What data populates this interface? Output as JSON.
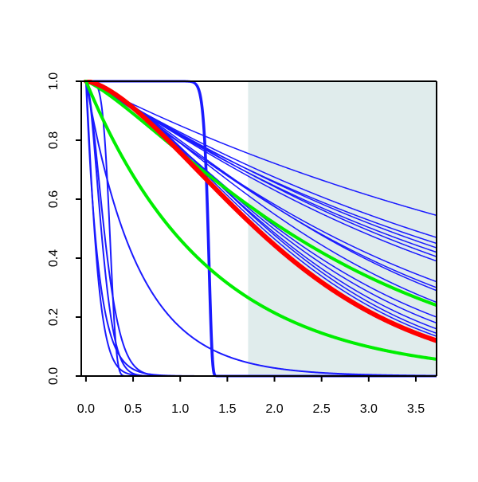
{
  "chart_data": {
    "type": "line",
    "title": "",
    "xlabel": "",
    "ylabel": "",
    "xlim": [
      -0.05,
      3.72
    ],
    "ylim": [
      0,
      1
    ],
    "x_ticks": [
      0.0,
      0.5,
      1.0,
      1.5,
      2.0,
      2.5,
      3.0,
      3.5
    ],
    "x_tick_labels": [
      "0.0",
      "0.5",
      "1.0",
      "1.5",
      "2.0",
      "2.5",
      "3.0",
      "3.5"
    ],
    "y_ticks": [
      0.0,
      0.2,
      0.4,
      0.6,
      0.8,
      1.0
    ],
    "y_tick_labels": [
      "0.0",
      "0.2",
      "0.4",
      "0.6",
      "0.8",
      "1.0"
    ],
    "shaded_region": {
      "x_from": 1.72,
      "x_to": 3.72,
      "color": "#e0ecec"
    },
    "grid": false,
    "legend": "none",
    "colors": {
      "blue": "#1a1aff",
      "red": "#ff0000",
      "green": "#00ee00",
      "axis": "#000000"
    },
    "series": [
      {
        "color": "blue",
        "kind": "weibull",
        "lambda": 1.31,
        "k": 40,
        "width": 3,
        "end_y": 0.0
      },
      {
        "color": "blue",
        "kind": "weibull",
        "lambda": 1.3,
        "k": 40,
        "width": 2,
        "end_y": 0.0
      },
      {
        "color": "blue",
        "kind": "weibull",
        "lambda": 0.27,
        "k": 5,
        "width": 2,
        "end_y": 0.0
      },
      {
        "color": "blue",
        "kind": "weibull",
        "lambda": 0.12,
        "k": 1.2,
        "width": 2,
        "end_y": 0.0
      },
      {
        "color": "blue",
        "kind": "weibull",
        "lambda": 0.2,
        "k": 1.7,
        "width": 2,
        "end_y": 0.0
      },
      {
        "color": "blue",
        "kind": "weibull",
        "lambda": 0.24,
        "k": 1.6,
        "width": 2,
        "end_y": 0.0
      },
      {
        "color": "blue",
        "kind": "exp",
        "rate": 1.8,
        "width": 2,
        "end_y": 0.001
      },
      {
        "color": "blue",
        "kind": "exp",
        "rate": 7.5,
        "width": 2,
        "end_y": 0.0
      },
      {
        "color": "blue",
        "kind": "power",
        "end_y": 0.545,
        "p": 1.0,
        "width": 1.5
      },
      {
        "color": "blue",
        "kind": "power",
        "end_y": 0.47,
        "p": 1.05,
        "width": 1.5
      },
      {
        "color": "blue",
        "kind": "power",
        "end_y": 0.45,
        "p": 1.05,
        "width": 1.5
      },
      {
        "color": "blue",
        "kind": "power",
        "end_y": 0.435,
        "p": 1.1,
        "width": 1.5
      },
      {
        "color": "blue",
        "kind": "power",
        "end_y": 0.42,
        "p": 1.1,
        "width": 1.5
      },
      {
        "color": "blue",
        "kind": "power",
        "end_y": 0.405,
        "p": 1.15,
        "width": 1.5
      },
      {
        "color": "blue",
        "kind": "power",
        "end_y": 0.39,
        "p": 1.15,
        "width": 1.5
      },
      {
        "color": "blue",
        "kind": "power",
        "end_y": 0.32,
        "p": 1.2,
        "width": 1.5
      },
      {
        "color": "blue",
        "kind": "power",
        "end_y": 0.3,
        "p": 1.25,
        "width": 1.5
      },
      {
        "color": "blue",
        "kind": "power",
        "end_y": 0.29,
        "p": 1.3,
        "width": 1.5
      },
      {
        "color": "blue",
        "kind": "power",
        "end_y": 0.25,
        "p": 1.35,
        "width": 1.5
      },
      {
        "color": "blue",
        "kind": "power",
        "end_y": 0.2,
        "p": 1.4,
        "width": 1.5
      },
      {
        "color": "blue",
        "kind": "power",
        "end_y": 0.18,
        "p": 1.45,
        "width": 1.5
      },
      {
        "color": "blue",
        "kind": "power",
        "end_y": 0.16,
        "p": 1.5,
        "width": 1.5
      },
      {
        "color": "blue",
        "kind": "power",
        "end_y": 0.145,
        "p": 1.55,
        "width": 1.5
      },
      {
        "color": "blue",
        "kind": "power",
        "end_y": 0.135,
        "p": 1.55,
        "width": 1.5
      },
      {
        "color": "green",
        "kind": "power",
        "end_y": 0.24,
        "p": 1.25,
        "width": 4
      },
      {
        "color": "red",
        "kind": "power",
        "end_y": 0.12,
        "p": 1.55,
        "width": 6
      },
      {
        "color": "green",
        "kind": "exp",
        "rate": 0.77,
        "width": 4,
        "end_y": 0.058
      }
    ]
  }
}
